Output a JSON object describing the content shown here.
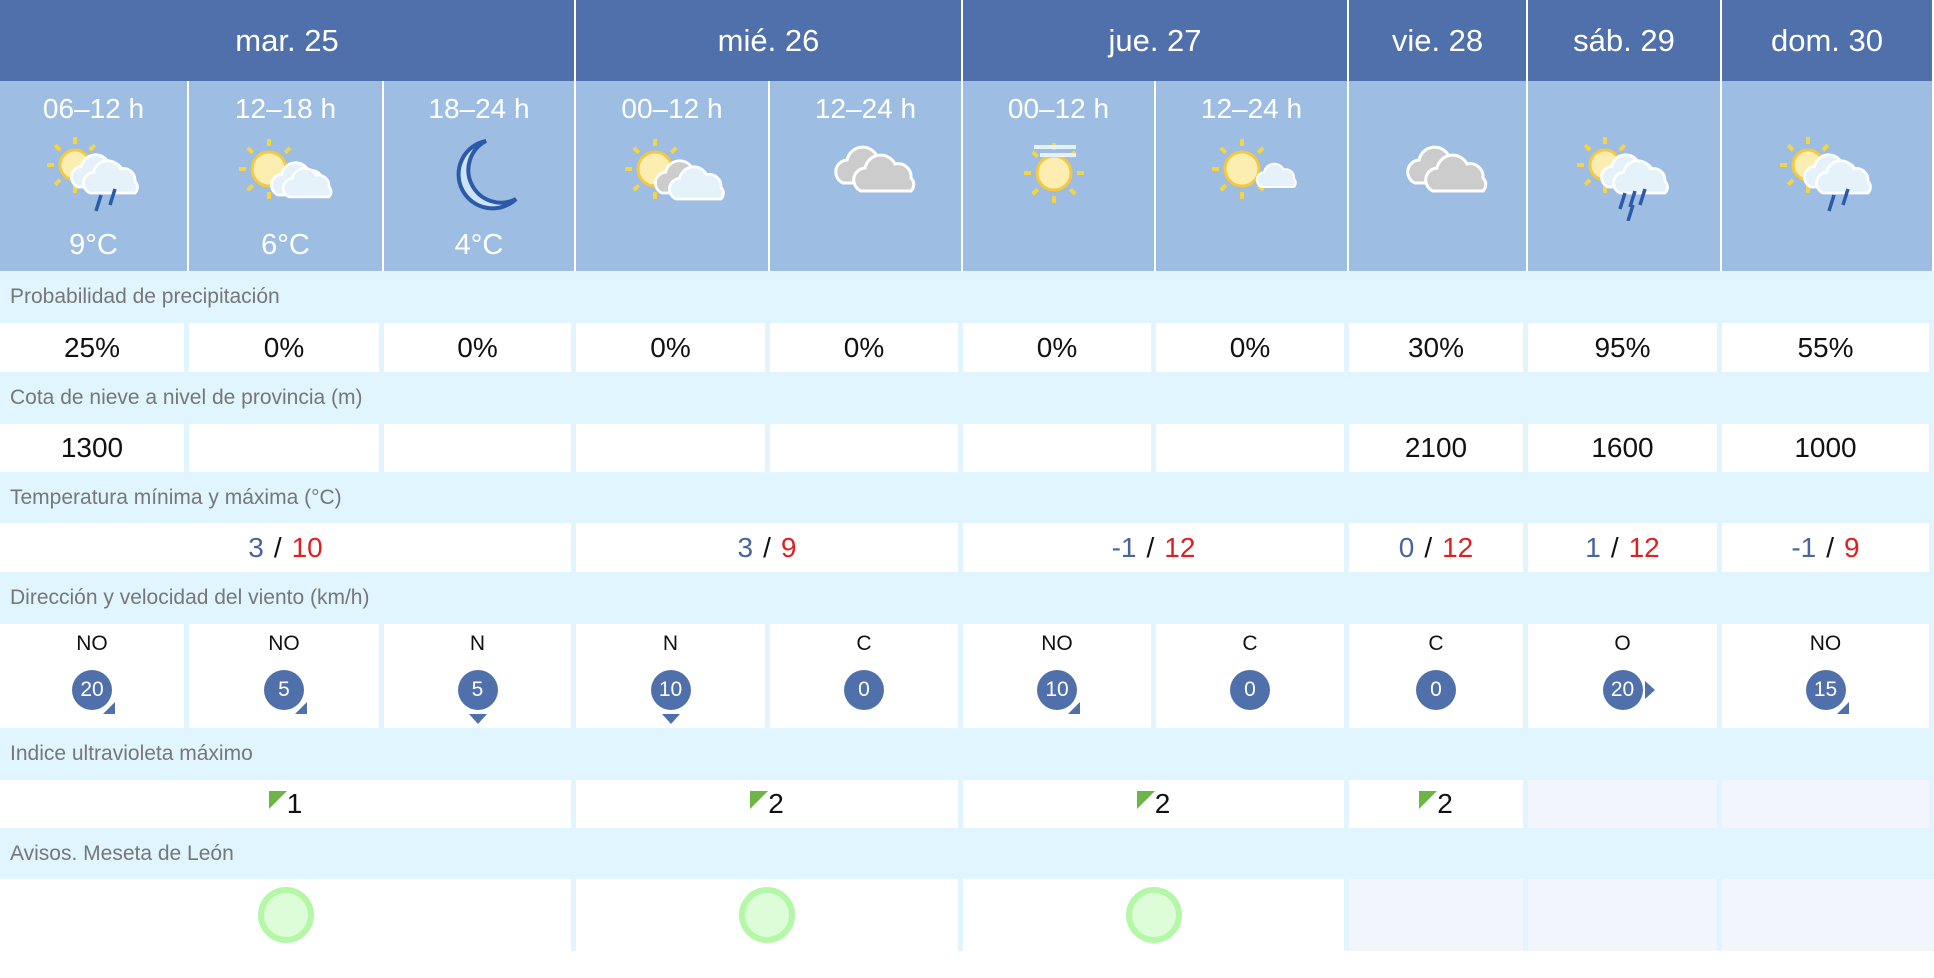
{
  "days": [
    {
      "label": "mar. 25",
      "span": 3
    },
    {
      "label": "mié. 26",
      "span": 2
    },
    {
      "label": "jue. 27",
      "span": 2
    },
    {
      "label": "vie. 28",
      "span": 1
    },
    {
      "label": "sáb. 29",
      "span": 1
    },
    {
      "label": "dom. 30",
      "span": 1
    }
  ],
  "periods": [
    {
      "label": "06–12 h",
      "icon": "sun-cloud-rain",
      "temp": "9°C"
    },
    {
      "label": "12–18 h",
      "icon": "sun-cloud",
      "temp": "6°C"
    },
    {
      "label": "18–24 h",
      "icon": "moon",
      "temp": "4°C"
    },
    {
      "label": "00–12 h",
      "icon": "sun-grey-cloud",
      "temp": ""
    },
    {
      "label": "12–24 h",
      "icon": "grey-clouds",
      "temp": ""
    },
    {
      "label": "00–12 h",
      "icon": "sun-haze",
      "temp": ""
    },
    {
      "label": "12–24 h",
      "icon": "sun-small-cloud",
      "temp": ""
    },
    {
      "label": "",
      "icon": "grey-clouds",
      "temp": ""
    },
    {
      "label": "",
      "icon": "sun-cloud-heavy-rain",
      "temp": ""
    },
    {
      "label": "",
      "icon": "sun-cloud-rain",
      "temp": ""
    }
  ],
  "precip": {
    "label": "Probabilidad de precipitación",
    "values": [
      "25%",
      "0%",
      "0%",
      "0%",
      "0%",
      "0%",
      "0%",
      "30%",
      "95%",
      "55%"
    ]
  },
  "snow": {
    "label": "Cota de nieve a nivel de provincia (m)",
    "values": [
      "1300",
      "",
      "",
      "",
      "",
      "",
      "",
      "2100",
      "1600",
      "1000"
    ]
  },
  "temps": {
    "label": "Temperatura mínima y máxima (°C)",
    "values": [
      {
        "min": "3",
        "max": "10",
        "span": 3
      },
      {
        "min": "3",
        "max": "9",
        "span": 2
      },
      {
        "min": "-1",
        "max": "12",
        "span": 2
      },
      {
        "min": "0",
        "max": "12",
        "span": 1
      },
      {
        "min": "1",
        "max": "12",
        "span": 1
      },
      {
        "min": "-1",
        "max": "9",
        "span": 1
      }
    ]
  },
  "wind": {
    "label": "Dirección y velocidad del viento (km/h)",
    "values": [
      {
        "dir": "NO",
        "speed": "20"
      },
      {
        "dir": "NO",
        "speed": "5"
      },
      {
        "dir": "N",
        "speed": "5"
      },
      {
        "dir": "N",
        "speed": "10"
      },
      {
        "dir": "C",
        "speed": "0"
      },
      {
        "dir": "NO",
        "speed": "10"
      },
      {
        "dir": "C",
        "speed": "0"
      },
      {
        "dir": "C",
        "speed": "0"
      },
      {
        "dir": "O",
        "speed": "20"
      },
      {
        "dir": "NO",
        "speed": "15"
      }
    ]
  },
  "uv": {
    "label": "Indice ultravioleta máximo",
    "values": [
      {
        "value": "1",
        "span": 3
      },
      {
        "value": "2",
        "span": 2
      },
      {
        "value": "2",
        "span": 2
      },
      {
        "value": "2",
        "span": 1
      },
      {
        "value": "",
        "span": 1
      },
      {
        "value": "",
        "span": 1
      }
    ]
  },
  "avisos": {
    "label": "Avisos. Meseta de León",
    "values": [
      {
        "level": "green",
        "span": 3
      },
      {
        "level": "green",
        "span": 2
      },
      {
        "level": "green",
        "span": 2
      },
      {
        "level": "",
        "span": 1
      },
      {
        "level": "",
        "span": 1
      },
      {
        "level": "",
        "span": 1
      }
    ]
  },
  "colors": {
    "header": "#5070ab",
    "subheader": "#9dbde3",
    "band": "#e0f5fd",
    "min": "#4a64a0",
    "max": "#e02020",
    "uv_low": "#6db544",
    "aviso_green": "#b4f7a6"
  }
}
